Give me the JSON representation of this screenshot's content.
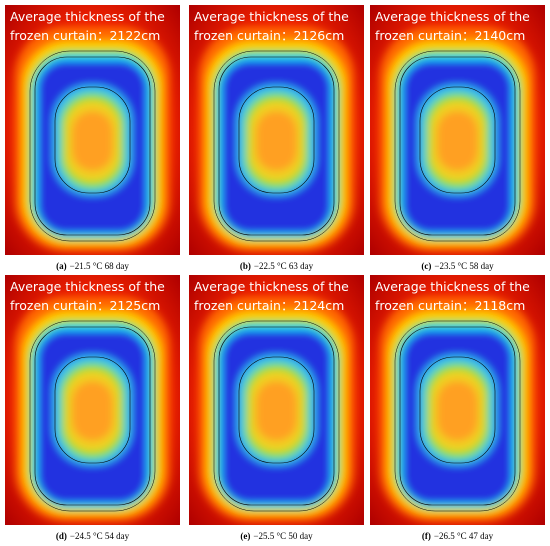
{
  "panels": [
    {
      "title_lines": [
        "Average thickness of the",
        "frozen curtain：2122cm"
      ],
      "label": "(a)",
      "caption": "−21.5 °C 68 day"
    },
    {
      "title_lines": [
        "Average thickness of the",
        "frozen curtain：2126cm"
      ],
      "label": "(b)",
      "caption": "−22.5 °C 63 day"
    },
    {
      "title_lines": [
        "Average thickness of the",
        "frozen curtain：2140cm"
      ],
      "label": "(c)",
      "caption": "−23.5 °C 58 day"
    },
    {
      "title_lines": [
        "Average thickness of the",
        "frozen curtain：2125cm"
      ],
      "label": "(d)",
      "caption": "−24.5 °C 54 day"
    },
    {
      "title_lines": [
        "Average thickness of the",
        "frozen curtain：2124cm"
      ],
      "label": "(e)",
      "caption": "−25.5 °C 50 day"
    },
    {
      "title_lines": [
        "Average thickness of the",
        "frozen curtain：2118cm"
      ],
      "label": "(f)",
      "caption": "−26.5 °C 47 day"
    }
  ]
}
